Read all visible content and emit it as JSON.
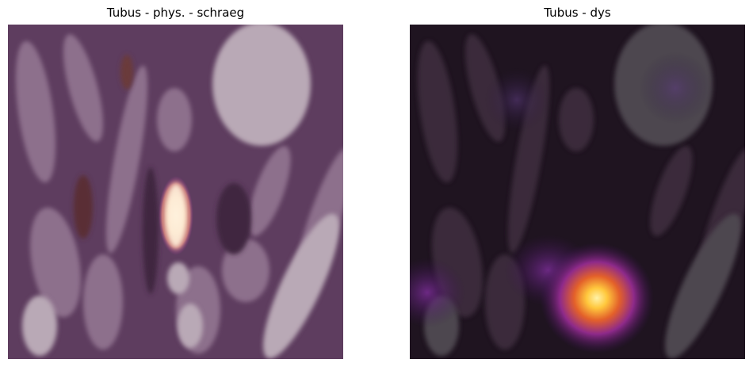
{
  "panels": [
    {
      "title": "Tubus - phys. - schraeg",
      "base_tone": "#6e4a6e",
      "heat_color": "#fff1d6"
    },
    {
      "title": "Tubus - dys",
      "base_tone": "#2a1a2c",
      "heat_color": "#ffd84a"
    }
  ]
}
